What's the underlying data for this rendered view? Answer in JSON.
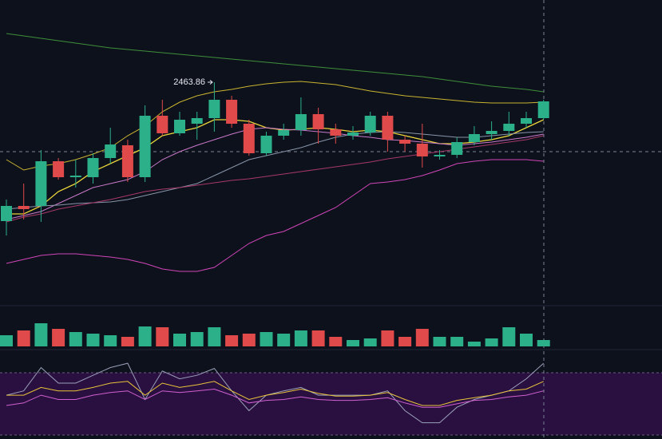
{
  "chart_data": {
    "type": "candlestick",
    "up_color": "#2bb08a",
    "down_color": "#e04a4a",
    "ylim": [
      2184,
      2567
    ],
    "open": [
      2290,
      2309,
      2309,
      2365,
      2345,
      2345,
      2369,
      2385,
      2345,
      2422,
      2400,
      2412,
      2419,
      2442,
      2412,
      2375,
      2397,
      2404,
      2424,
      2405,
      2397,
      2401,
      2422,
      2392,
      2387,
      2371,
      2373,
      2389,
      2399,
      2403,
      2412,
      2419
    ],
    "high": [
      2317,
      2337,
      2379,
      2369,
      2367,
      2375,
      2407,
      2392,
      2435,
      2442,
      2427,
      2427,
      2463.86,
      2447,
      2417,
      2402,
      2412,
      2445,
      2432,
      2412,
      2409,
      2427,
      2427,
      2397,
      2412,
      2379,
      2395,
      2409,
      2415,
      2427,
      2427,
      2442
    ],
    "low": [
      2272,
      2292,
      2289,
      2342,
      2332,
      2337,
      2362,
      2339,
      2339,
      2397,
      2397,
      2392,
      2402,
      2407,
      2372,
      2372,
      2392,
      2397,
      2387,
      2387,
      2392,
      2397,
      2377,
      2377,
      2357,
      2367,
      2369,
      2385,
      2392,
      2397,
      2407,
      2417
    ],
    "close": [
      2309,
      2305,
      2365,
      2345,
      2347,
      2369,
      2386,
      2345,
      2422,
      2400,
      2417,
      2419,
      2442,
      2412,
      2375,
      2397,
      2404,
      2424,
      2405,
      2397,
      2401,
      2422,
      2392,
      2387,
      2371,
      2373,
      2389,
      2399,
      2403,
      2412,
      2419,
      2440
    ],
    "lines": [
      {
        "color": "#3f8f3a",
        "values": [
          2525,
          2522,
          2519,
          2516,
          2513,
          2510,
          2507,
          2505,
          2503,
          2501,
          2499,
          2497,
          2495,
          2493,
          2491,
          2489,
          2487,
          2485,
          2483,
          2481,
          2479,
          2477,
          2475,
          2473,
          2471,
          2468,
          2465,
          2462,
          2459,
          2457,
          2455,
          2452
        ]
      },
      {
        "color": "#c9b430",
        "values": [
          2367,
          2354,
          2359,
          2362,
          2367,
          2374,
          2382,
          2397,
          2409,
          2427,
          2439,
          2447,
          2452,
          2455,
          2459,
          2462,
          2464,
          2465,
          2463,
          2461,
          2457,
          2453,
          2450,
          2447,
          2445,
          2443,
          2441,
          2439,
          2438,
          2438,
          2438,
          2439
        ]
      },
      {
        "color": "#e8d43a",
        "values": [
          2299,
          2299,
          2309,
          2327,
          2337,
          2352,
          2362,
          2372,
          2382,
          2397,
          2402,
          2407,
          2417,
          2417,
          2415,
          2407,
          2404,
          2405,
          2407,
          2405,
          2402,
          2404,
          2402,
          2397,
          2392,
          2387,
          2387,
          2389,
          2392,
          2397,
          2407,
          2417
        ]
      },
      {
        "color": "#c978c8",
        "values": [
          2292,
          2297,
          2302,
          2312,
          2322,
          2332,
          2337,
          2342,
          2352,
          2367,
          2377,
          2385,
          2392,
          2399,
          2405,
          2407,
          2405,
          2404,
          2402,
          2400,
          2397,
          2395,
          2392,
          2391,
          2389,
          2387,
          2385,
          2387,
          2389,
          2392,
          2395,
          2399
        ]
      },
      {
        "color": "#8895a8",
        "values": [
          2305,
          2307,
          2309,
          2310,
          2312,
          2313,
          2314,
          2317,
          2322,
          2327,
          2332,
          2337,
          2347,
          2357,
          2367,
          2372,
          2377,
          2382,
          2389,
          2395,
          2399,
          2401,
          2402,
          2401,
          2399,
          2397,
          2395,
          2395,
          2397,
          2399,
          2401,
          2402
        ]
      },
      {
        "color": "#a8386a",
        "values": [
          2289,
          2295,
          2299,
          2305,
          2309,
          2313,
          2317,
          2322,
          2327,
          2330,
          2332,
          2335,
          2338,
          2341,
          2343,
          2346,
          2349,
          2352,
          2355,
          2358,
          2361,
          2364,
          2368,
          2371,
          2374,
          2377,
          2380,
          2383,
          2386,
          2389,
          2392,
          2397
        ]
      },
      {
        "color": "#d045b8",
        "values": [
          2237,
          2242,
          2247,
          2249,
          2249,
          2247,
          2245,
          2242,
          2237,
          2230,
          2227,
          2227,
          2232,
          2247,
          2262,
          2272,
          2277,
          2287,
          2297,
          2307,
          2322,
          2337,
          2339,
          2342,
          2347,
          2354,
          2362,
          2365,
          2367,
          2367,
          2367,
          2365
        ]
      }
    ],
    "volume_ylim": [
      0,
      51
    ],
    "volume": [
      14,
      20,
      29,
      22,
      18,
      16,
      14,
      12,
      25,
      24,
      16,
      18,
      24,
      14,
      16,
      18,
      16,
      20,
      20,
      12,
      8,
      10,
      20,
      12,
      22,
      12,
      12,
      6,
      10,
      24,
      16,
      8
    ],
    "rsi_ylim": [
      0,
      100
    ],
    "rsi_lines": [
      {
        "color": "#9aa0b8",
        "values": [
          49,
          54,
          81,
          63,
          63,
          72,
          81,
          86,
          44,
          77,
          68,
          72,
          80,
          54,
          31,
          49,
          54,
          58,
          49,
          49,
          49,
          49,
          54,
          31,
          17,
          17,
          35,
          44,
          49,
          54,
          68,
          86
        ]
      },
      {
        "color": "#e8c43a",
        "values": [
          49,
          49,
          58,
          54,
          54,
          58,
          63,
          65,
          49,
          63,
          58,
          61,
          65,
          54,
          44,
          49,
          52,
          56,
          51,
          48,
          48,
          49,
          52,
          44,
          37,
          37,
          43,
          46,
          49,
          54,
          56,
          65
        ]
      },
      {
        "color": "#d060d0",
        "values": [
          37,
          40,
          49,
          44,
          44,
          49,
          52,
          54,
          44,
          54,
          52,
          54,
          56,
          49,
          40,
          43,
          44,
          47,
          44,
          43,
          43,
          44,
          46,
          40,
          35,
          35,
          39,
          43,
          44,
          47,
          49,
          54
        ]
      }
    ]
  }
}
